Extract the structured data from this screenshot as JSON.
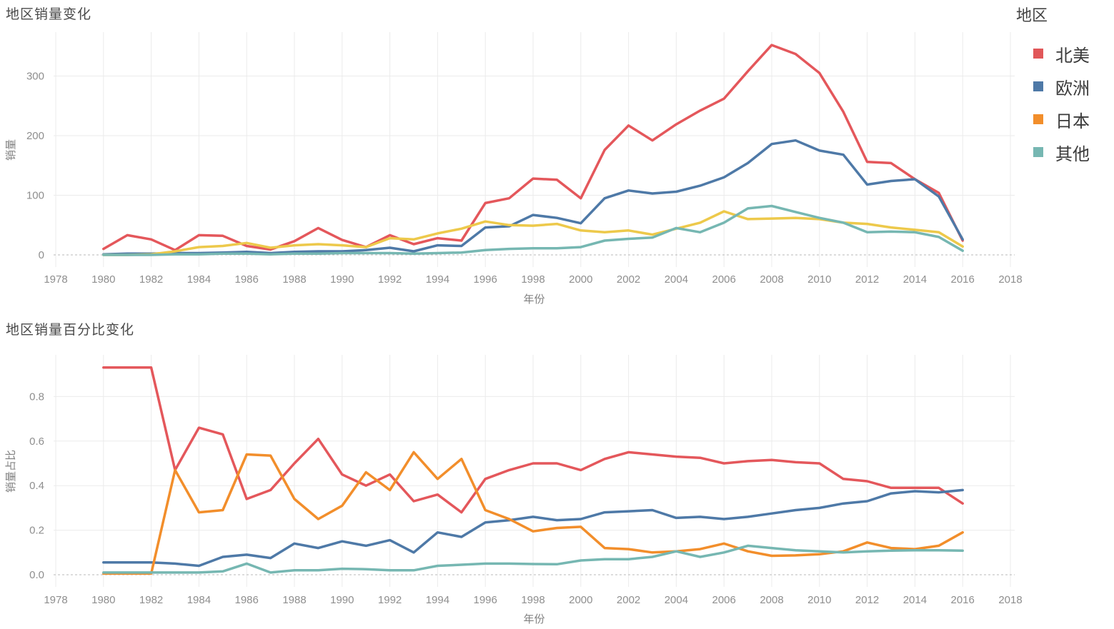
{
  "page": {
    "background": "#ffffff"
  },
  "legend": {
    "title": "地区",
    "items": [
      {
        "id": "north-america",
        "label": "北美",
        "color": "#e15759"
      },
      {
        "id": "europe",
        "label": "欧洲",
        "color": "#4e79a7"
      },
      {
        "id": "japan",
        "label": "日本",
        "color": "#f28e2b"
      },
      {
        "id": "other",
        "label": "其他",
        "color": "#76b7b2"
      }
    ]
  },
  "chart_data": [
    {
      "type": "line",
      "title": "地区销量变化",
      "xlabel": "年份",
      "ylabel": "销量",
      "x_range": [
        1978,
        2018
      ],
      "x_ticks": [
        1978,
        1980,
        1982,
        1984,
        1986,
        1988,
        1990,
        1992,
        1994,
        1996,
        1998,
        2000,
        2002,
        2004,
        2006,
        2008,
        2010,
        2012,
        2014,
        2016,
        2018
      ],
      "y_ticks": [
        0,
        100,
        200,
        300
      ],
      "y_tick_labels": [
        "0",
        "100",
        "200",
        "300"
      ],
      "ylim": [
        0,
        375
      ],
      "grid": true,
      "zero_line_dashed": true,
      "legend_position": "right",
      "years": [
        1980,
        1981,
        1982,
        1983,
        1984,
        1985,
        1986,
        1987,
        1988,
        1989,
        1990,
        1991,
        1992,
        1993,
        1994,
        1995,
        1996,
        1997,
        1998,
        1999,
        2000,
        2001,
        2002,
        2003,
        2004,
        2005,
        2006,
        2007,
        2008,
        2009,
        2010,
        2011,
        2012,
        2013,
        2014,
        2015,
        2016
      ],
      "series": [
        {
          "id": "north-america",
          "name": "北美",
          "color": "#e4575b",
          "values": [
            10,
            33,
            26,
            8,
            33,
            32,
            15,
            9,
            23,
            45,
            25,
            13,
            33,
            18,
            28,
            24,
            87,
            95,
            128,
            126,
            95,
            176,
            217,
            192,
            219,
            242,
            262,
            308,
            352,
            337,
            305,
            240,
            156,
            154,
            127,
            104,
            24
          ]
        },
        {
          "id": "europe",
          "name": "欧洲",
          "color": "#4e79a7",
          "values": [
            1,
            2,
            2,
            3,
            3,
            4,
            5,
            3,
            5,
            6,
            6,
            8,
            12,
            6,
            16,
            15,
            46,
            48,
            67,
            62,
            53,
            95,
            108,
            103,
            106,
            116,
            130,
            154,
            186,
            192,
            175,
            168,
            118,
            124,
            127,
            98,
            26
          ]
        },
        {
          "id": "japan",
          "name": "日本",
          "color": "#edc94b",
          "values": [
            0,
            0,
            1,
            6,
            13,
            15,
            20,
            12,
            16,
            18,
            16,
            13,
            28,
            26,
            36,
            44,
            56,
            50,
            49,
            52,
            41,
            38,
            41,
            34,
            44,
            54,
            73,
            60,
            61,
            62,
            60,
            54,
            52,
            46,
            42,
            38,
            14
          ]
        },
        {
          "id": "other",
          "name": "其他",
          "color": "#76b7b2",
          "values": [
            0,
            0,
            0,
            1,
            1,
            2,
            2,
            1,
            2,
            2,
            3,
            3,
            3,
            2,
            3,
            4,
            8,
            10,
            11,
            11,
            13,
            24,
            27,
            29,
            45,
            38,
            54,
            78,
            82,
            72,
            62,
            54,
            38,
            39,
            38,
            30,
            7
          ]
        }
      ]
    },
    {
      "type": "line",
      "title": "地区销量百分比变化",
      "xlabel": "年份",
      "ylabel": "销量占比",
      "x_range": [
        1978,
        2018
      ],
      "x_ticks": [
        1978,
        1980,
        1982,
        1984,
        1986,
        1988,
        1990,
        1992,
        1994,
        1996,
        1998,
        2000,
        2002,
        2004,
        2006,
        2008,
        2010,
        2012,
        2014,
        2016,
        2018
      ],
      "y_ticks": [
        0,
        0.2,
        0.4,
        0.6,
        0.8
      ],
      "y_tick_labels": [
        "0.0",
        "0.2",
        "0.4",
        "0.6",
        "0.8"
      ],
      "ylim": [
        0,
        0.99
      ],
      "grid": true,
      "zero_line_dashed": true,
      "legend_position": "right",
      "years": [
        1980,
        1981,
        1982,
        1983,
        1984,
        1985,
        1986,
        1987,
        1988,
        1989,
        1990,
        1991,
        1992,
        1993,
        1994,
        1995,
        1996,
        1997,
        1998,
        1999,
        2000,
        2001,
        2002,
        2003,
        2004,
        2005,
        2006,
        2007,
        2008,
        2009,
        2010,
        2011,
        2012,
        2013,
        2014,
        2015,
        2016
      ],
      "series": [
        {
          "id": "north-america",
          "name": "北美",
          "color": "#e4575b",
          "values": [
            0.93,
            0.93,
            0.93,
            0.47,
            0.66,
            0.63,
            0.34,
            0.38,
            0.5,
            0.61,
            0.45,
            0.4,
            0.45,
            0.33,
            0.36,
            0.28,
            0.43,
            0.47,
            0.5,
            0.5,
            0.47,
            0.52,
            0.55,
            0.54,
            0.53,
            0.525,
            0.5,
            0.51,
            0.515,
            0.505,
            0.5,
            0.43,
            0.42,
            0.39,
            0.39,
            0.39,
            0.32
          ]
        },
        {
          "id": "europe",
          "name": "欧洲",
          "color": "#4e79a7",
          "values": [
            0.055,
            0.055,
            0.055,
            0.05,
            0.04,
            0.08,
            0.09,
            0.075,
            0.14,
            0.12,
            0.15,
            0.13,
            0.155,
            0.1,
            0.19,
            0.17,
            0.235,
            0.245,
            0.26,
            0.245,
            0.25,
            0.28,
            0.285,
            0.29,
            0.255,
            0.26,
            0.25,
            0.26,
            0.275,
            0.29,
            0.3,
            0.32,
            0.33,
            0.365,
            0.375,
            0.37,
            0.38
          ]
        },
        {
          "id": "japan",
          "name": "日本",
          "color": "#f28e2b",
          "values": [
            0.005,
            0.005,
            0.005,
            0.47,
            0.28,
            0.29,
            0.54,
            0.535,
            0.34,
            0.25,
            0.31,
            0.46,
            0.38,
            0.55,
            0.43,
            0.52,
            0.29,
            0.25,
            0.195,
            0.21,
            0.215,
            0.12,
            0.115,
            0.1,
            0.105,
            0.115,
            0.14,
            0.105,
            0.085,
            0.087,
            0.092,
            0.105,
            0.145,
            0.12,
            0.115,
            0.13,
            0.19
          ]
        },
        {
          "id": "other",
          "name": "其他",
          "color": "#76b7b2",
          "values": [
            0.01,
            0.01,
            0.01,
            0.01,
            0.01,
            0.015,
            0.05,
            0.01,
            0.02,
            0.02,
            0.027,
            0.025,
            0.02,
            0.02,
            0.04,
            0.045,
            0.05,
            0.05,
            0.048,
            0.047,
            0.064,
            0.07,
            0.07,
            0.08,
            0.105,
            0.08,
            0.1,
            0.13,
            0.12,
            0.11,
            0.105,
            0.1,
            0.105,
            0.108,
            0.11,
            0.11,
            0.108
          ]
        }
      ]
    }
  ]
}
